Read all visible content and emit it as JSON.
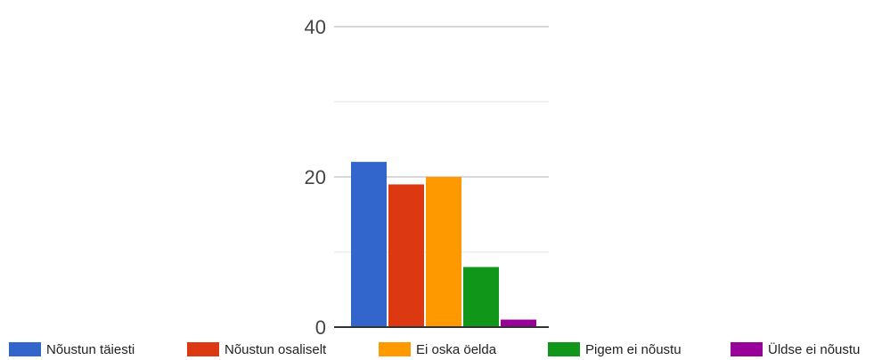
{
  "chart_data": {
    "type": "bar",
    "title": "",
    "xlabel": "",
    "ylabel": "",
    "ylim": [
      0,
      40
    ],
    "y_ticks": [
      0,
      20,
      40
    ],
    "gridlines": [
      0,
      10,
      20,
      30,
      40
    ],
    "grid": true,
    "legend_position": "bottom",
    "categories": [
      "Nõustun täiesti",
      "Nõustun osaliselt",
      "Ei oska öelda",
      "Pigem ei nõustu",
      "Üldse ei nõustu"
    ],
    "values": [
      22,
      19,
      20,
      8,
      1
    ],
    "colors": [
      "#3366cc",
      "#dc3912",
      "#ff9900",
      "#109618",
      "#990099"
    ],
    "y_tick_labels": [
      "0",
      "20",
      "40"
    ]
  }
}
